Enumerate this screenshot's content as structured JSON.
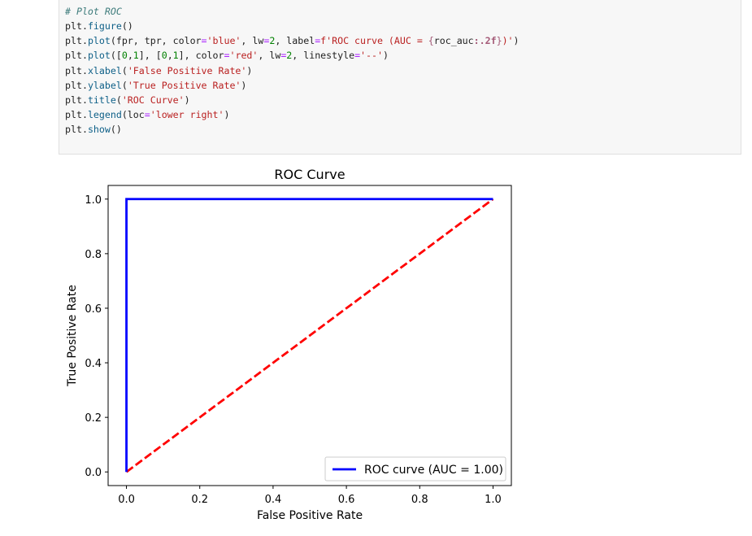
{
  "code_cell": {
    "lines": [
      [
        {
          "t": "# Plot ROC",
          "c": "comment"
        }
      ],
      [
        {
          "t": "plt",
          "c": "var"
        },
        {
          "t": ".",
          "c": "punct"
        },
        {
          "t": "figure",
          "c": "fn"
        },
        {
          "t": "()",
          "c": "punct"
        }
      ],
      [
        {
          "t": "plt",
          "c": "var"
        },
        {
          "t": ".",
          "c": "punct"
        },
        {
          "t": "plot",
          "c": "fn"
        },
        {
          "t": "(fpr, tpr, color",
          "c": "punct"
        },
        {
          "t": "=",
          "c": "op"
        },
        {
          "t": "'blue'",
          "c": "str"
        },
        {
          "t": ", lw",
          "c": "punct"
        },
        {
          "t": "=",
          "c": "op"
        },
        {
          "t": "2",
          "c": "num"
        },
        {
          "t": ", label",
          "c": "punct"
        },
        {
          "t": "=",
          "c": "op"
        },
        {
          "t": "f'ROC curve (AUC = ",
          "c": "fstr"
        },
        {
          "t": "{",
          "c": "interp-brace"
        },
        {
          "t": "roc_auc",
          "c": "var"
        },
        {
          "t": ":.2f",
          "c": "fmt"
        },
        {
          "t": "}",
          "c": "interp-brace"
        },
        {
          "t": ")'",
          "c": "fstr"
        },
        {
          "t": ")",
          "c": "punct"
        }
      ],
      [
        {
          "t": "plt",
          "c": "var"
        },
        {
          "t": ".",
          "c": "punct"
        },
        {
          "t": "plot",
          "c": "fn"
        },
        {
          "t": "([",
          "c": "punct"
        },
        {
          "t": "0",
          "c": "num"
        },
        {
          "t": ",",
          "c": "punct"
        },
        {
          "t": "1",
          "c": "num"
        },
        {
          "t": "], [",
          "c": "punct"
        },
        {
          "t": "0",
          "c": "num"
        },
        {
          "t": ",",
          "c": "punct"
        },
        {
          "t": "1",
          "c": "num"
        },
        {
          "t": "], color",
          "c": "punct"
        },
        {
          "t": "=",
          "c": "op"
        },
        {
          "t": "'red'",
          "c": "str"
        },
        {
          "t": ", lw",
          "c": "punct"
        },
        {
          "t": "=",
          "c": "op"
        },
        {
          "t": "2",
          "c": "num"
        },
        {
          "t": ", linestyle",
          "c": "punct"
        },
        {
          "t": "=",
          "c": "op"
        },
        {
          "t": "'--'",
          "c": "str"
        },
        {
          "t": ")",
          "c": "punct"
        }
      ],
      [
        {
          "t": "plt",
          "c": "var"
        },
        {
          "t": ".",
          "c": "punct"
        },
        {
          "t": "xlabel",
          "c": "fn"
        },
        {
          "t": "(",
          "c": "punct"
        },
        {
          "t": "'False Positive Rate'",
          "c": "str"
        },
        {
          "t": ")",
          "c": "punct"
        }
      ],
      [
        {
          "t": "plt",
          "c": "var"
        },
        {
          "t": ".",
          "c": "punct"
        },
        {
          "t": "ylabel",
          "c": "fn"
        },
        {
          "t": "(",
          "c": "punct"
        },
        {
          "t": "'True Positive Rate'",
          "c": "str"
        },
        {
          "t": ")",
          "c": "punct"
        }
      ],
      [
        {
          "t": "plt",
          "c": "var"
        },
        {
          "t": ".",
          "c": "punct"
        },
        {
          "t": "title",
          "c": "fn"
        },
        {
          "t": "(",
          "c": "punct"
        },
        {
          "t": "'ROC Curve'",
          "c": "str"
        },
        {
          "t": ")",
          "c": "punct"
        }
      ],
      [
        {
          "t": "plt",
          "c": "var"
        },
        {
          "t": ".",
          "c": "punct"
        },
        {
          "t": "legend",
          "c": "fn"
        },
        {
          "t": "(loc",
          "c": "punct"
        },
        {
          "t": "=",
          "c": "op"
        },
        {
          "t": "'lower right'",
          "c": "str"
        },
        {
          "t": ")",
          "c": "punct"
        }
      ],
      [
        {
          "t": "plt",
          "c": "var"
        },
        {
          "t": ".",
          "c": "punct"
        },
        {
          "t": "show",
          "c": "fn"
        },
        {
          "t": "()",
          "c": "punct"
        }
      ]
    ]
  },
  "chart_data": {
    "type": "line",
    "title": "ROC Curve",
    "xlabel": "False Positive Rate",
    "ylabel": "True Positive Rate",
    "xlim": [
      -0.05,
      1.05
    ],
    "ylim": [
      -0.05,
      1.05
    ],
    "xticks": [
      0.0,
      0.2,
      0.4,
      0.6,
      0.8,
      1.0
    ],
    "yticks": [
      0.0,
      0.2,
      0.4,
      0.6,
      0.8,
      1.0
    ],
    "xtick_labels": [
      "0.0",
      "0.2",
      "0.4",
      "0.6",
      "0.8",
      "1.0"
    ],
    "ytick_labels": [
      "0.0",
      "0.2",
      "0.4",
      "0.6",
      "0.8",
      "1.0"
    ],
    "grid": false,
    "legend_placement": "lower right",
    "series": [
      {
        "name": "ROC curve (AUC = 1.00)",
        "color": "#0000ff",
        "linestyle": "solid",
        "x": [
          0.0,
          0.0,
          1.0
        ],
        "y": [
          0.0,
          1.0,
          1.0
        ]
      },
      {
        "color": "#ff0000",
        "linestyle": "dashed",
        "x": [
          0.0,
          1.0
        ],
        "y": [
          0.0,
          1.0
        ]
      }
    ]
  }
}
